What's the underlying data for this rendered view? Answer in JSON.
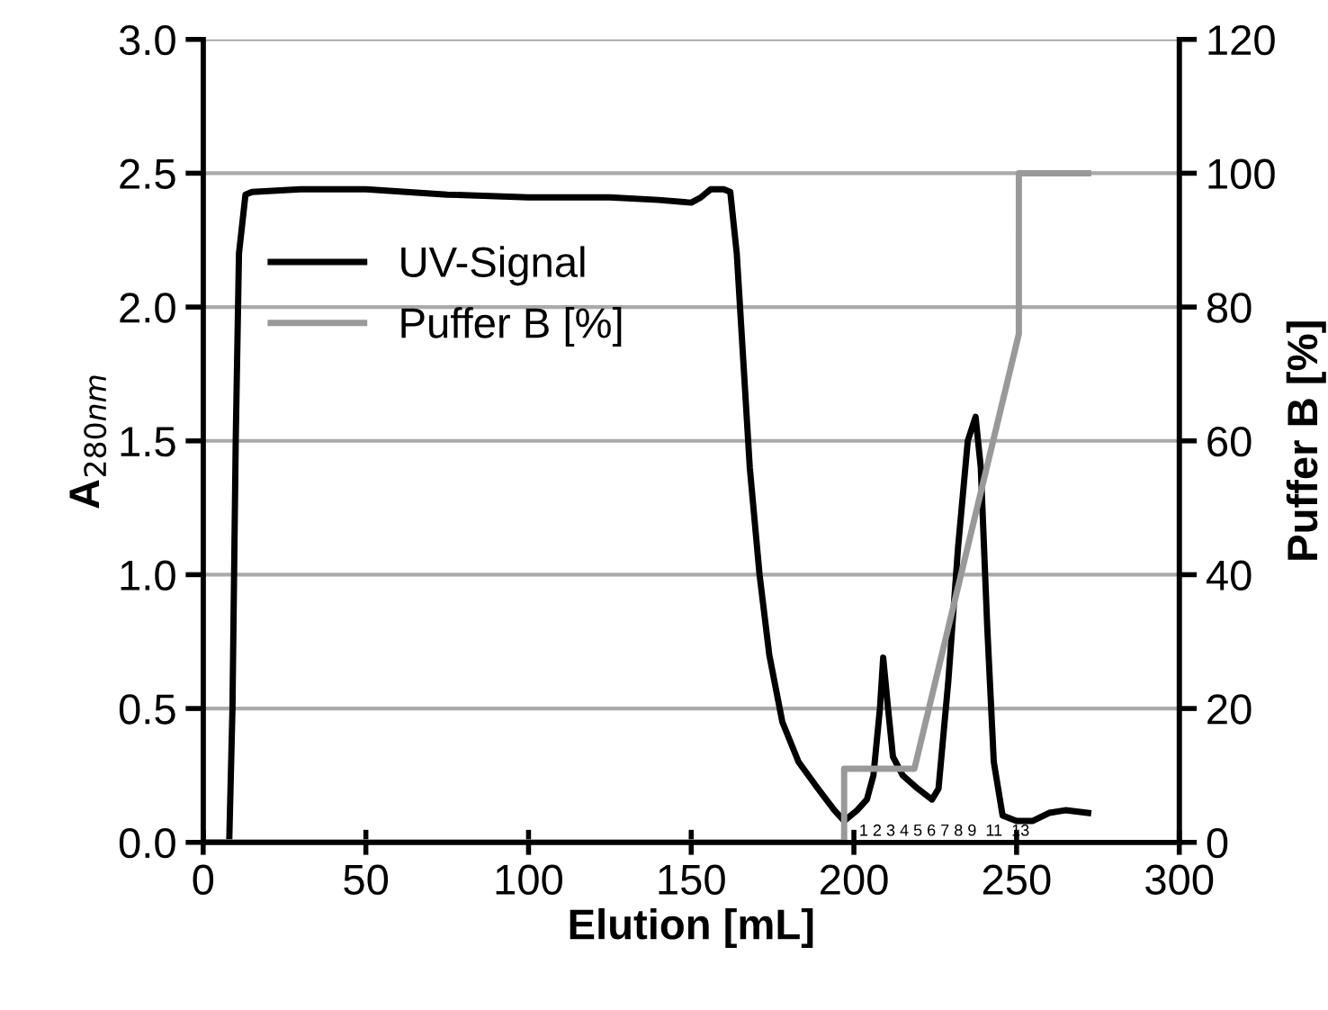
{
  "chart_data": {
    "type": "line",
    "xlabel": "Elution [mL]",
    "ylabel": "A$_{280nm}$",
    "y2label": "Puffer B [%]",
    "xlim": [
      0,
      300
    ],
    "xticks": [
      0,
      50,
      100,
      150,
      200,
      250,
      300
    ],
    "ylim": [
      0,
      3.0
    ],
    "yticks": [
      {
        "value": 0,
        "label": "0.0"
      },
      {
        "value": 0.5,
        "label": "0.5"
      },
      {
        "value": 1,
        "label": "1.0"
      },
      {
        "value": 1.5,
        "label": "1.5"
      },
      {
        "value": 2,
        "label": "2.0"
      },
      {
        "value": 2.5,
        "label": "2.5"
      },
      {
        "value": 3,
        "label": "3.0"
      }
    ],
    "y2lim": [
      0,
      120
    ],
    "y2ticks": [
      0,
      20,
      40,
      60,
      80,
      100,
      120
    ],
    "grid": "y",
    "legend": "left",
    "marker": "none",
    "line_style": "solid",
    "series": [
      {
        "name": "UV-Signal",
        "color": "#000000",
        "x": [
          0,
          8,
          9,
          10,
          11,
          13,
          15,
          30,
          50,
          75,
          100,
          125,
          140,
          150,
          153,
          156,
          160,
          162,
          164,
          166,
          168,
          171,
          174,
          178,
          183,
          189,
          194,
          197,
          201,
          204,
          206,
          208,
          209,
          210.5,
          212,
          215,
          219.7,
          224,
          226,
          229,
          232,
          235,
          237.4,
          239,
          241,
          243,
          245.7,
          250,
          255,
          260,
          265,
          272
        ],
        "values": [
          0,
          0,
          0.5,
          1.5,
          2.2,
          2.42,
          2.43,
          2.44,
          2.44,
          2.42,
          2.41,
          2.41,
          2.4,
          2.39,
          2.41,
          2.44,
          2.44,
          2.43,
          2.2,
          1.8,
          1.4,
          1.0,
          0.7,
          0.45,
          0.3,
          0.2,
          0.12,
          0.08,
          0.12,
          0.16,
          0.25,
          0.5,
          0.69,
          0.5,
          0.32,
          0.25,
          0.2,
          0.16,
          0.2,
          0.6,
          1.1,
          1.5,
          1.59,
          1.4,
          0.8,
          0.3,
          0.1,
          0.08,
          0.08,
          0.11,
          0.12,
          0.11
        ]
      },
      {
        "name": "Puffer B [%]",
        "color": "#999999",
        "axis": "y2",
        "x": [
          0,
          197,
          197,
          218.6,
          250.7,
          250.7,
          272
        ],
        "values": [
          0,
          0,
          11,
          11,
          76,
          100,
          100
        ]
      }
    ],
    "annotations": [
      "1 2 3 4 5 6 7 8 9  11  13"
    ]
  }
}
